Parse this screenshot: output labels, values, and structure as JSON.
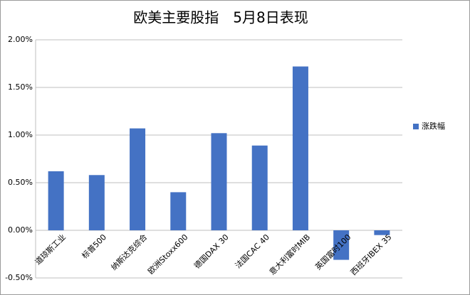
{
  "chart_data": {
    "type": "bar",
    "title": "欧美主要股指　5月8日表现",
    "categories": [
      "道琼斯工业",
      "标普500",
      "纳斯达克综合",
      "欧洲Stoxx600",
      "德国DAX 30",
      "法国CAC 40",
      "意大利富时MIB",
      "英国富时100",
      "西班牙IBEX 35"
    ],
    "series": [
      {
        "name": "涨跌幅",
        "color": "#4472c4",
        "values": [
          0.62,
          0.58,
          1.07,
          0.4,
          1.02,
          0.89,
          1.72,
          -0.31,
          -0.05
        ]
      }
    ],
    "ylim": [
      -0.5,
      2.0
    ],
    "yticks": [
      {
        "value": -0.5,
        "label": "-0.50%"
      },
      {
        "value": 0,
        "label": "0.00%"
      },
      {
        "value": 0.5,
        "label": "0.50%"
      },
      {
        "value": 1.0,
        "label": "1.00%"
      },
      {
        "value": 1.5,
        "label": "1.50%"
      },
      {
        "value": 2.0,
        "label": "2.00%"
      }
    ],
    "grid": true,
    "legend": "right"
  }
}
